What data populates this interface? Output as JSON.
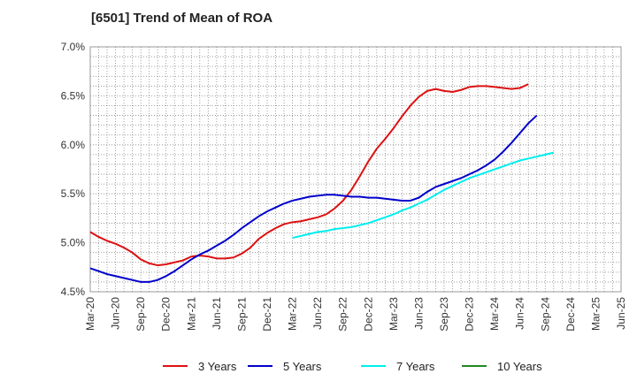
{
  "chart_data": {
    "type": "line",
    "title": "[6501]  Trend of Mean of ROA",
    "xlabel": "",
    "ylabel": "",
    "x_ticks": [
      "Mar-20",
      "Jun-20",
      "Sep-20",
      "Dec-20",
      "Mar-21",
      "Jun-21",
      "Sep-21",
      "Dec-21",
      "Mar-22",
      "Jun-22",
      "Sep-22",
      "Dec-22",
      "Mar-23",
      "Jun-23",
      "Sep-23",
      "Dec-23",
      "Mar-24",
      "Jun-24",
      "Sep-24",
      "Dec-24",
      "Mar-25",
      "Jun-25"
    ],
    "y_ticks": [
      "4.5%",
      "5.0%",
      "5.5%",
      "6.0%",
      "6.5%",
      "7.0%"
    ],
    "ylim": [
      4.5,
      7.0
    ],
    "grid": true,
    "legend_position": "bottom",
    "series": [
      {
        "name": "3 Years",
        "color": "#dd1111",
        "start": "Mar-20",
        "values": [
          5.11,
          5.06,
          5.02,
          4.99,
          4.95,
          4.9,
          4.83,
          4.79,
          4.77,
          4.78,
          4.8,
          4.82,
          4.86,
          4.87,
          4.86,
          4.84,
          4.84,
          4.85,
          4.89,
          4.95,
          5.04,
          5.1,
          5.15,
          5.19,
          5.21,
          5.22,
          5.24,
          5.26,
          5.29,
          5.35,
          5.43,
          5.54,
          5.68,
          5.83,
          5.96,
          6.06,
          6.17,
          6.29,
          6.4,
          6.49,
          6.55,
          6.57,
          6.55,
          6.54,
          6.56,
          6.59,
          6.6,
          6.6,
          6.59,
          6.58,
          6.57,
          6.58,
          6.62
        ]
      },
      {
        "name": "5 Years",
        "color": "#0000cc",
        "start": "Mar-20",
        "values": [
          4.74,
          4.71,
          4.68,
          4.66,
          4.64,
          4.62,
          4.6,
          4.6,
          4.62,
          4.66,
          4.71,
          4.77,
          4.83,
          4.88,
          4.92,
          4.97,
          5.02,
          5.08,
          5.15,
          5.21,
          5.27,
          5.32,
          5.36,
          5.4,
          5.43,
          5.45,
          5.47,
          5.48,
          5.49,
          5.49,
          5.48,
          5.47,
          5.47,
          5.46,
          5.46,
          5.45,
          5.44,
          5.43,
          5.43,
          5.46,
          5.52,
          5.57,
          5.6,
          5.63,
          5.66,
          5.7,
          5.74,
          5.79,
          5.85,
          5.93,
          6.02,
          6.12,
          6.22,
          6.3
        ]
      },
      {
        "name": "7 Years",
        "color": "#00eeee",
        "start": "Mar-22",
        "values": [
          5.05,
          5.07,
          5.09,
          5.11,
          5.12,
          5.14,
          5.15,
          5.16,
          5.18,
          5.2,
          5.23,
          5.26,
          5.29,
          5.33,
          5.36,
          5.4,
          5.44,
          5.49,
          5.54,
          5.58,
          5.62,
          5.66,
          5.69,
          5.72,
          5.75,
          5.78,
          5.81,
          5.84,
          5.86,
          5.88,
          5.9,
          5.92
        ]
      },
      {
        "name": "10 Years",
        "color": "#228822",
        "start": "Mar-20",
        "values": []
      }
    ]
  }
}
